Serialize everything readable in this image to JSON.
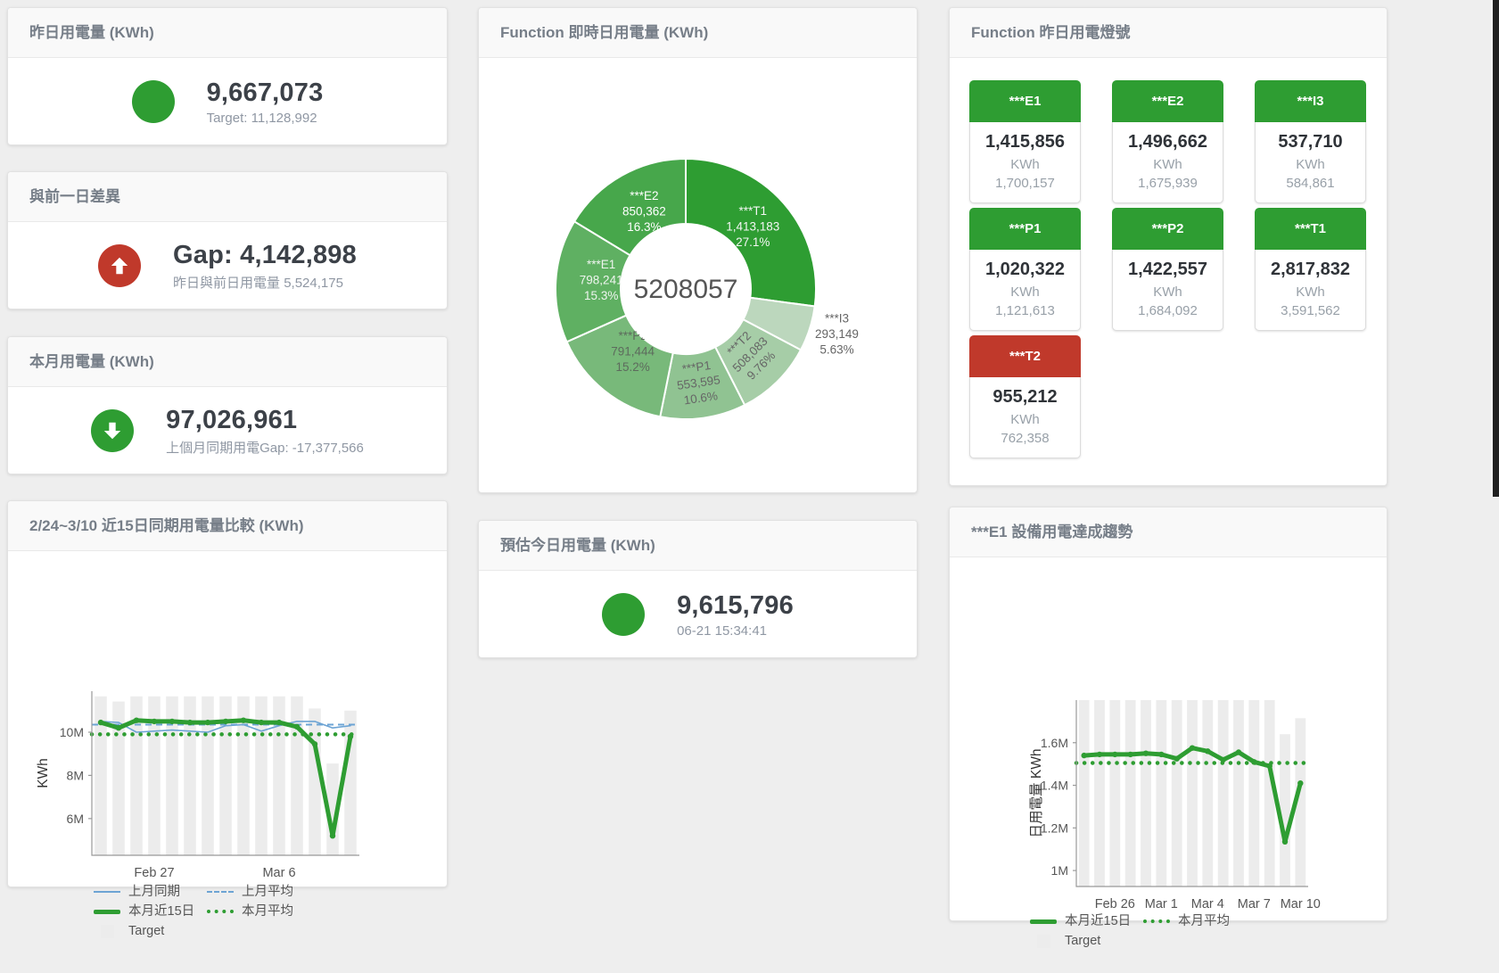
{
  "colors": {
    "green": "#2e9d32",
    "red": "#c0392b",
    "blue": "#6da4d4",
    "bar_grey": "#ececec"
  },
  "stat_panels": [
    {
      "title": "昨日用電量 (KWh)",
      "icon": "circle",
      "icon_color": "#2e9d32",
      "value": "9,667,073",
      "subtext": "Target: 11,128,992"
    },
    {
      "title": "與前一日差異",
      "icon": "arrow-up",
      "icon_color": "#c0392b",
      "value": "Gap: 4,142,898",
      "subtext": "昨日與前日用電量 5,524,175"
    },
    {
      "title": "本月用電量 (KWh)",
      "icon": "arrow-down",
      "icon_color": "#2e9d32",
      "value": "97,026,961",
      "subtext": "上個月同期用電Gap: -17,377,566"
    },
    {
      "title": "預估今日用電量 (KWh)",
      "icon": "circle",
      "icon_color": "#2e9d32",
      "value": "9,615,796",
      "subtext": "06-21 15:34:41"
    }
  ],
  "lights": {
    "title": "Function 昨日用電燈號",
    "unit": "KWh",
    "tiles": [
      {
        "name": "***E1",
        "value": "1,415,856",
        "sub": "1,700,157",
        "status": "green"
      },
      {
        "name": "***E2",
        "value": "1,496,662",
        "sub": "1,675,939",
        "status": "green"
      },
      {
        "name": "***I3",
        "value": "537,710",
        "sub": "584,861",
        "status": "green"
      },
      {
        "name": "***P1",
        "value": "1,020,322",
        "sub": "1,121,613",
        "status": "green"
      },
      {
        "name": "***P2",
        "value": "1,422,557",
        "sub": "1,684,092",
        "status": "green"
      },
      {
        "name": "***T1",
        "value": "2,817,832",
        "sub": "3,591,562",
        "status": "green"
      },
      {
        "name": "***T2",
        "value": "955,212",
        "sub": "762,358",
        "status": "red"
      }
    ]
  },
  "chart_data": [
    {
      "type": "pie",
      "title": "Function 即時日用電量 (KWh)",
      "center_label": "5208057",
      "slices": [
        {
          "name": "***T1",
          "value": 1413183,
          "value_label": "1,413,183",
          "pct": "27.1%",
          "color": "#2e9d32",
          "label_color": "#f4f6f4",
          "rotate": 0,
          "label_r": 100
        },
        {
          "name": "***I3",
          "value": 293149,
          "value_label": "293,149",
          "pct": "5.63%",
          "color": "#bcd7bd",
          "label_color": "#666666",
          "outside": true,
          "label_r": 178
        },
        {
          "name": "***T2",
          "value": 508083,
          "value_label": "508,083",
          "pct": "9.76%",
          "color": "#a6cda7",
          "label_color": "#666666",
          "rotate": -45,
          "label_r": 107
        },
        {
          "name": "***P1",
          "value": 553595,
          "value_label": "553,595",
          "pct": "10.6%",
          "color": "#90c392",
          "label_color": "#666666",
          "rotate": -8,
          "label_r": 110
        },
        {
          "name": "***P2",
          "value": 791444,
          "value_label": "791,444",
          "pct": "15.2%",
          "color": "#78b97a",
          "label_color": "#5d6b5d",
          "rotate": 0,
          "label_r": 95
        },
        {
          "name": "***E1",
          "value": 798241,
          "value_label": "798,241",
          "pct": "15.3%",
          "color": "#5fb062",
          "label_color": "#eef4ee",
          "rotate": 0,
          "label_r": 95
        },
        {
          "name": "***E2",
          "value": 850362,
          "value_label": "850,362",
          "pct": "16.3%",
          "color": "#47a74b",
          "label_color": "#ffffff",
          "rotate": 0,
          "label_r": 95
        }
      ]
    },
    {
      "type": "line+bar",
      "title": "2/24~3/10 近15日同期用電量比較 (KWh)",
      "ylabel": "KWh",
      "ylim": [
        4.3,
        11.9
      ],
      "yticks": [
        {
          "v": 6,
          "label": "6M"
        },
        {
          "v": 8,
          "label": "8M"
        },
        {
          "v": 10,
          "label": "10M"
        }
      ],
      "xticks": [
        {
          "i": 3,
          "label": "Feb 27"
        },
        {
          "i": 10,
          "label": "Mar 6"
        }
      ],
      "grid": false,
      "bar_name": "Target",
      "target_bars": [
        11.66,
        11.42,
        11.66,
        11.66,
        11.66,
        11.66,
        11.66,
        11.66,
        11.66,
        11.66,
        11.66,
        11.66,
        11.1,
        8.55,
        11.0
      ],
      "series": [
        {
          "name": "上月平均",
          "style": "dash",
          "color": "#6da4d4",
          "value": 10.35
        },
        {
          "name": "本月平均",
          "style": "dot",
          "color": "#2e9d32",
          "value": 9.9
        },
        {
          "name": "上月同期",
          "style": "line",
          "color": "#6da4d4",
          "width": 1.6,
          "values": [
            10.5,
            10.45,
            10.0,
            10.05,
            10.1,
            10.05,
            10.0,
            10.3,
            10.35,
            10.05,
            10.3,
            10.5,
            10.5,
            10.2,
            10.3
          ]
        },
        {
          "name": "本月近15日",
          "style": "thick",
          "color": "#2e9d32",
          "width": 5,
          "values": [
            10.45,
            10.2,
            10.55,
            10.5,
            10.5,
            10.45,
            10.45,
            10.5,
            10.55,
            10.45,
            10.45,
            10.25,
            9.45,
            5.2,
            9.8
          ]
        }
      ],
      "legend": [
        [
          {
            "label": "上月同期",
            "swatch": "line",
            "color": "#6da4d4"
          },
          {
            "label": "上月平均",
            "swatch": "dash",
            "color": "#6da4d4"
          }
        ],
        [
          {
            "label": "本月近15日",
            "swatch": "thick",
            "color": "#2e9d32"
          },
          {
            "label": "本月平均",
            "swatch": "dot",
            "color": "#2e9d32"
          }
        ],
        [
          {
            "label": "Target",
            "swatch": "square",
            "color": "#ececec"
          }
        ]
      ]
    },
    {
      "type": "line+bar",
      "title": "***E1 設備用電達成趨勢",
      "ylabel": "日用電量 KWh",
      "ylim": [
        0.925,
        1.8
      ],
      "yticks": [
        {
          "v": 1,
          "label": "1M"
        },
        {
          "v": 1.2,
          "label": "1.2M"
        },
        {
          "v": 1.4,
          "label": "1.4M"
        },
        {
          "v": 1.6,
          "label": "1.6M"
        }
      ],
      "xticks": [
        {
          "i": 2,
          "label": "Feb 26"
        },
        {
          "i": 5,
          "label": "Mar 1"
        },
        {
          "i": 8,
          "label": "Mar 4"
        },
        {
          "i": 11,
          "label": "Mar 7"
        },
        {
          "i": 14,
          "label": "Mar 10"
        }
      ],
      "grid": false,
      "bar_name": "Target",
      "target_bars": [
        1.8,
        1.8,
        1.8,
        1.8,
        1.8,
        1.8,
        1.8,
        1.8,
        1.8,
        1.8,
        1.8,
        1.8,
        1.8,
        1.64,
        1.715
      ],
      "series": [
        {
          "name": "本月平均",
          "style": "dot",
          "color": "#2e9d32",
          "value": 1.505
        },
        {
          "name": "本月近15日",
          "style": "thick",
          "color": "#2e9d32",
          "width": 5,
          "values": [
            1.54,
            1.545,
            1.545,
            1.545,
            1.55,
            1.545,
            1.525,
            1.575,
            1.56,
            1.52,
            1.555,
            1.51,
            1.49,
            1.135,
            1.41
          ]
        }
      ],
      "legend": [
        [
          {
            "label": "本月近15日",
            "swatch": "thick",
            "color": "#2e9d32"
          },
          {
            "label": "本月平均",
            "swatch": "dot",
            "color": "#2e9d32"
          }
        ],
        [
          {
            "label": "Target",
            "swatch": "square",
            "color": "#ececec"
          }
        ]
      ]
    }
  ]
}
